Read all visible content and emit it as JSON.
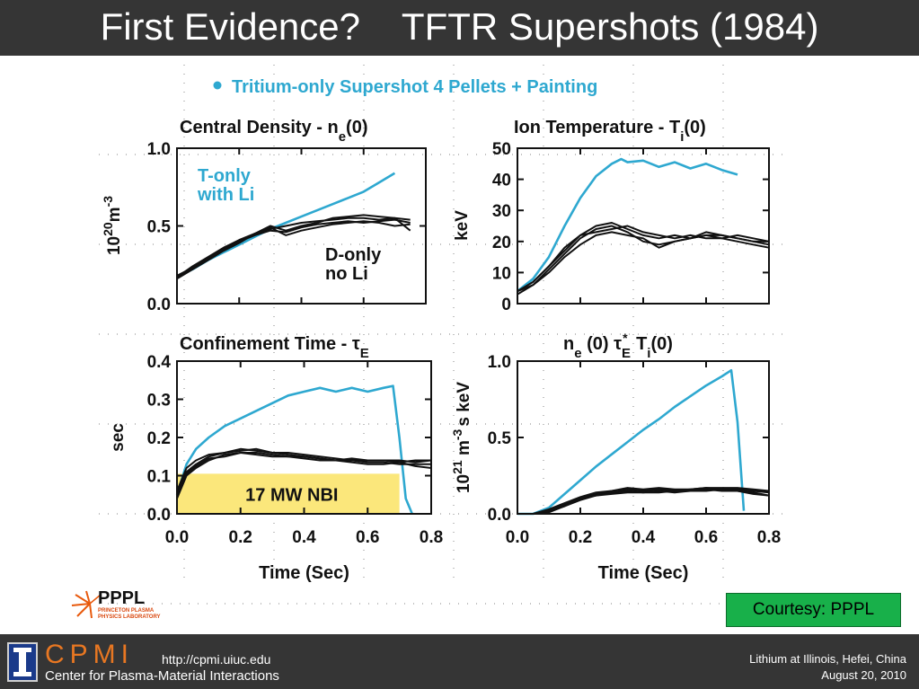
{
  "slide": {
    "title": "First Evidence?    TFTR Supershots (1984)",
    "courtesy": "Courtesy: PPPL"
  },
  "figure": {
    "legend": "Tritium-only Supershot  4 Pellets + Painting",
    "logo": {
      "text": "PPPL",
      "small_text": [
        "PRINCETON PLASMA",
        "PHYSICS LABORATORY"
      ]
    }
  },
  "footer": {
    "org_short": "CPMI",
    "org_full": "Center for Plasma-Material Interactions",
    "url": "http://cpmi.uiuc.edu",
    "conference": "Lithium at Illinois, Hefei, China",
    "date": "August 20, 2010"
  },
  "colors": {
    "tritium_series": "#2ea8d0",
    "deuterium_series": "#111111",
    "nbi_fill": "#fbe77b",
    "title_bar": "#353535",
    "cpmi_accent": "#e87722",
    "courtesy_box": "#18b04a"
  },
  "chart_data": [
    {
      "type": "line",
      "title": "Central Density - n",
      "title_sub": "e",
      "title_tail": "(0)",
      "ylabel": "10",
      "ylabel_sup": "20",
      "ylabel_tail": "m",
      "ylabel_tail_sup": "-3",
      "xlim": [
        0,
        0.8
      ],
      "ylim": [
        0,
        1.0
      ],
      "yticks": [
        "0.0",
        "0.5",
        "1.0"
      ],
      "ytick_values": [
        0,
        0.5,
        1.0
      ],
      "xticks": [],
      "xtick_values": [
        0,
        0.2,
        0.4,
        0.6,
        0.8
      ],
      "annotations": [
        {
          "lines": [
            "T-only",
            "with Li"
          ],
          "color": "tritium"
        },
        {
          "lines": [
            "D-only",
            "no Li"
          ],
          "color": "deuterium"
        }
      ],
      "series": [
        {
          "kind": "tritium",
          "x": [
            0.0,
            0.05,
            0.1,
            0.15,
            0.2,
            0.25,
            0.3,
            0.35,
            0.4,
            0.45,
            0.5,
            0.55,
            0.6,
            0.65,
            0.7
          ],
          "y": [
            0.17,
            0.22,
            0.28,
            0.33,
            0.38,
            0.43,
            0.48,
            0.52,
            0.56,
            0.6,
            0.64,
            0.68,
            0.72,
            0.78,
            0.84
          ]
        },
        {
          "kind": "deuterium",
          "x": [
            0.0,
            0.05,
            0.1,
            0.15,
            0.2,
            0.25,
            0.3,
            0.35,
            0.4,
            0.45,
            0.5,
            0.55,
            0.6,
            0.65,
            0.7,
            0.75
          ],
          "y": [
            0.17,
            0.24,
            0.3,
            0.36,
            0.41,
            0.45,
            0.48,
            0.5,
            0.52,
            0.53,
            0.54,
            0.55,
            0.55,
            0.54,
            0.55,
            0.54
          ]
        },
        {
          "kind": "deuterium",
          "x": [
            0.0,
            0.05,
            0.1,
            0.15,
            0.2,
            0.25,
            0.3,
            0.35,
            0.4,
            0.45,
            0.5,
            0.55,
            0.6,
            0.65,
            0.7,
            0.75
          ],
          "y": [
            0.18,
            0.23,
            0.29,
            0.35,
            0.4,
            0.44,
            0.47,
            0.46,
            0.49,
            0.51,
            0.52,
            0.53,
            0.52,
            0.53,
            0.54,
            0.52
          ]
        },
        {
          "kind": "deuterium",
          "x": [
            0.0,
            0.05,
            0.1,
            0.15,
            0.2,
            0.25,
            0.3,
            0.35,
            0.4,
            0.45,
            0.5,
            0.55,
            0.6,
            0.65,
            0.7,
            0.75
          ],
          "y": [
            0.16,
            0.22,
            0.28,
            0.34,
            0.39,
            0.45,
            0.5,
            0.47,
            0.5,
            0.52,
            0.55,
            0.56,
            0.57,
            0.56,
            0.55,
            0.47
          ]
        },
        {
          "kind": "deuterium",
          "x": [
            0.0,
            0.05,
            0.1,
            0.15,
            0.2,
            0.25,
            0.3,
            0.35,
            0.4,
            0.45,
            0.5,
            0.55,
            0.6,
            0.65,
            0.7,
            0.75
          ],
          "y": [
            0.17,
            0.23,
            0.29,
            0.35,
            0.4,
            0.45,
            0.49,
            0.44,
            0.47,
            0.49,
            0.51,
            0.52,
            0.53,
            0.52,
            0.5,
            0.51
          ]
        }
      ]
    },
    {
      "type": "line",
      "title": "Ion Temperature - T",
      "title_sub": "i",
      "title_tail": "(0)",
      "ylabel": "keV",
      "xlim": [
        0,
        0.8
      ],
      "ylim": [
        0,
        50
      ],
      "yticks": [
        "0",
        "10",
        "20",
        "30",
        "40",
        "50"
      ],
      "ytick_values": [
        0,
        10,
        20,
        30,
        40,
        50
      ],
      "xticks": [],
      "xtick_values": [
        0,
        0.2,
        0.4,
        0.6,
        0.8
      ],
      "annotations": [],
      "series": [
        {
          "kind": "tritium",
          "x": [
            0.0,
            0.05,
            0.1,
            0.15,
            0.2,
            0.25,
            0.3,
            0.33,
            0.35,
            0.4,
            0.45,
            0.5,
            0.55,
            0.6,
            0.65,
            0.7
          ],
          "y": [
            4,
            8,
            15,
            25,
            34,
            41,
            45,
            46.5,
            45.5,
            46,
            44,
            45.5,
            43.5,
            45,
            43,
            41.5
          ]
        },
        {
          "kind": "deuterium",
          "x": [
            0.0,
            0.05,
            0.1,
            0.15,
            0.2,
            0.25,
            0.3,
            0.35,
            0.4,
            0.45,
            0.5,
            0.55,
            0.6,
            0.65,
            0.7,
            0.75,
            0.8
          ],
          "y": [
            4,
            7,
            12,
            17,
            22,
            25,
            26,
            24,
            22,
            21,
            22,
            21,
            22,
            22,
            21,
            20,
            19
          ]
        },
        {
          "kind": "deuterium",
          "x": [
            0.0,
            0.05,
            0.1,
            0.15,
            0.2,
            0.25,
            0.3,
            0.35,
            0.4,
            0.45,
            0.5,
            0.55,
            0.6,
            0.65,
            0.7,
            0.75,
            0.8
          ],
          "y": [
            3,
            6,
            11,
            16,
            21,
            24,
            25,
            23,
            20,
            19,
            20,
            21,
            22,
            21,
            20,
            19,
            18
          ]
        },
        {
          "kind": "deuterium",
          "x": [
            0.0,
            0.05,
            0.1,
            0.15,
            0.2,
            0.25,
            0.3,
            0.35,
            0.4,
            0.45,
            0.5,
            0.55,
            0.6,
            0.65,
            0.7,
            0.75,
            0.8
          ],
          "y": [
            4,
            7,
            12,
            18,
            22,
            23,
            24,
            25,
            23,
            22,
            21,
            22,
            21,
            21,
            22,
            21,
            20
          ]
        },
        {
          "kind": "deuterium",
          "x": [
            0.0,
            0.05,
            0.1,
            0.15,
            0.2,
            0.25,
            0.3,
            0.35,
            0.4,
            0.45,
            0.5,
            0.55,
            0.6,
            0.65,
            0.7,
            0.75,
            0.8
          ],
          "y": [
            4,
            6,
            10,
            15,
            19,
            22,
            23,
            22,
            21,
            18,
            20,
            21,
            23,
            22,
            21,
            20,
            20
          ]
        }
      ]
    },
    {
      "type": "line",
      "title": "Confinement Time - τ",
      "title_sub": "E",
      "title_tail": "",
      "ylabel": "sec",
      "xlim": [
        0,
        0.8
      ],
      "ylim": [
        0,
        0.4
      ],
      "yticks": [
        "0.0",
        "0.1",
        "0.2",
        "0.3",
        "0.4"
      ],
      "ytick_values": [
        0,
        0.1,
        0.2,
        0.3,
        0.4
      ],
      "xticks": [
        "0.0",
        "0.2",
        "0.4",
        "0.6",
        "0.8"
      ],
      "xtick_values": [
        0,
        0.2,
        0.4,
        0.6,
        0.8
      ],
      "xlabel": "Time (Sec)",
      "fill": {
        "label": "17 MW NBI",
        "x": [
          0.0,
          0.7
        ],
        "y": [
          0.0,
          0.105
        ]
      },
      "annotations": [],
      "series": [
        {
          "kind": "tritium",
          "x": [
            0.0,
            0.03,
            0.06,
            0.1,
            0.15,
            0.2,
            0.25,
            0.3,
            0.35,
            0.4,
            0.45,
            0.5,
            0.55,
            0.6,
            0.65,
            0.68,
            0.7,
            0.72,
            0.74
          ],
          "y": [
            0.05,
            0.13,
            0.17,
            0.2,
            0.23,
            0.25,
            0.27,
            0.29,
            0.31,
            0.32,
            0.33,
            0.32,
            0.33,
            0.32,
            0.33,
            0.335,
            0.2,
            0.04,
            0.0
          ]
        },
        {
          "kind": "deuterium",
          "x": [
            0.0,
            0.03,
            0.06,
            0.1,
            0.15,
            0.2,
            0.25,
            0.3,
            0.35,
            0.4,
            0.45,
            0.5,
            0.55,
            0.6,
            0.65,
            0.7,
            0.75,
            0.8
          ],
          "y": [
            0.05,
            0.11,
            0.13,
            0.15,
            0.16,
            0.17,
            0.165,
            0.16,
            0.16,
            0.155,
            0.15,
            0.145,
            0.14,
            0.14,
            0.14,
            0.14,
            0.135,
            0.14
          ]
        },
        {
          "kind": "deuterium",
          "x": [
            0.0,
            0.03,
            0.06,
            0.1,
            0.15,
            0.2,
            0.25,
            0.3,
            0.35,
            0.4,
            0.45,
            0.5,
            0.55,
            0.6,
            0.65,
            0.7,
            0.75,
            0.8
          ],
          "y": [
            0.04,
            0.1,
            0.12,
            0.14,
            0.155,
            0.16,
            0.16,
            0.155,
            0.15,
            0.15,
            0.145,
            0.14,
            0.14,
            0.135,
            0.135,
            0.13,
            0.13,
            0.13
          ]
        },
        {
          "kind": "deuterium",
          "x": [
            0.0,
            0.03,
            0.06,
            0.1,
            0.15,
            0.2,
            0.25,
            0.3,
            0.35,
            0.4,
            0.45,
            0.5,
            0.55,
            0.6,
            0.65,
            0.7,
            0.75,
            0.8
          ],
          "y": [
            0.06,
            0.12,
            0.14,
            0.155,
            0.16,
            0.165,
            0.17,
            0.16,
            0.155,
            0.15,
            0.145,
            0.14,
            0.145,
            0.14,
            0.14,
            0.135,
            0.14,
            0.14
          ]
        },
        {
          "kind": "deuterium",
          "x": [
            0.0,
            0.03,
            0.06,
            0.1,
            0.15,
            0.2,
            0.25,
            0.3,
            0.35,
            0.4,
            0.45,
            0.5,
            0.55,
            0.6,
            0.65,
            0.7,
            0.75,
            0.8
          ],
          "y": [
            0.05,
            0.105,
            0.125,
            0.145,
            0.15,
            0.16,
            0.155,
            0.15,
            0.15,
            0.145,
            0.14,
            0.14,
            0.135,
            0.13,
            0.13,
            0.135,
            0.125,
            0.12
          ]
        }
      ]
    },
    {
      "type": "line",
      "title": "n",
      "title_sub": "e",
      "title_tail": " (0) τ",
      "title_tail_sub": "E",
      "title_tail_sup": "*",
      "title_end": " T",
      "title_end_sub": "i",
      "title_end_tail": "(0)",
      "ylabel": "10",
      "ylabel_sup": "21",
      "ylabel_tail": " m",
      "ylabel_tail_sup": "-3",
      "ylabel_end": "s keV",
      "xlim": [
        0,
        0.8
      ],
      "ylim": [
        0,
        1.0
      ],
      "yticks": [
        "0.0",
        "0.5",
        "1.0"
      ],
      "ytick_values": [
        0,
        0.5,
        1.0
      ],
      "xticks": [
        "0.0",
        "0.2",
        "0.4",
        "0.6",
        "0.8"
      ],
      "xtick_values": [
        0,
        0.2,
        0.4,
        0.6,
        0.8
      ],
      "xlabel": "Time (Sec)",
      "annotations": [],
      "series": [
        {
          "kind": "tritium",
          "x": [
            0.0,
            0.05,
            0.1,
            0.15,
            0.2,
            0.25,
            0.3,
            0.35,
            0.4,
            0.45,
            0.5,
            0.55,
            0.6,
            0.65,
            0.68,
            0.7,
            0.72
          ],
          "y": [
            0.0,
            0.0,
            0.04,
            0.13,
            0.22,
            0.31,
            0.39,
            0.47,
            0.55,
            0.62,
            0.7,
            0.77,
            0.84,
            0.9,
            0.94,
            0.6,
            0.02
          ]
        },
        {
          "kind": "deuterium",
          "x": [
            0.0,
            0.05,
            0.1,
            0.15,
            0.2,
            0.25,
            0.3,
            0.35,
            0.4,
            0.45,
            0.5,
            0.55,
            0.6,
            0.65,
            0.7,
            0.75,
            0.8
          ],
          "y": [
            0.0,
            0.0,
            0.02,
            0.06,
            0.1,
            0.13,
            0.15,
            0.16,
            0.15,
            0.16,
            0.15,
            0.16,
            0.17,
            0.16,
            0.16,
            0.15,
            0.14
          ]
        },
        {
          "kind": "deuterium",
          "x": [
            0.0,
            0.05,
            0.1,
            0.15,
            0.2,
            0.25,
            0.3,
            0.35,
            0.4,
            0.45,
            0.5,
            0.55,
            0.6,
            0.65,
            0.7,
            0.75,
            0.8
          ],
          "y": [
            0.0,
            0.0,
            0.01,
            0.05,
            0.09,
            0.12,
            0.14,
            0.15,
            0.14,
            0.15,
            0.14,
            0.15,
            0.16,
            0.15,
            0.15,
            0.14,
            0.12
          ]
        },
        {
          "kind": "deuterium",
          "x": [
            0.0,
            0.05,
            0.1,
            0.15,
            0.2,
            0.25,
            0.3,
            0.35,
            0.4,
            0.45,
            0.5,
            0.55,
            0.6,
            0.65,
            0.7,
            0.75,
            0.8
          ],
          "y": [
            0.0,
            0.0,
            0.03,
            0.07,
            0.11,
            0.14,
            0.15,
            0.17,
            0.16,
            0.17,
            0.16,
            0.16,
            0.17,
            0.17,
            0.17,
            0.16,
            0.15
          ]
        },
        {
          "kind": "deuterium",
          "x": [
            0.0,
            0.05,
            0.1,
            0.15,
            0.2,
            0.25,
            0.3,
            0.35,
            0.4,
            0.45,
            0.5,
            0.55,
            0.6,
            0.65,
            0.7,
            0.75,
            0.8
          ],
          "y": [
            0.0,
            0.0,
            0.02,
            0.05,
            0.1,
            0.12,
            0.13,
            0.14,
            0.14,
            0.14,
            0.15,
            0.15,
            0.15,
            0.16,
            0.15,
            0.13,
            0.12
          ]
        }
      ]
    }
  ]
}
